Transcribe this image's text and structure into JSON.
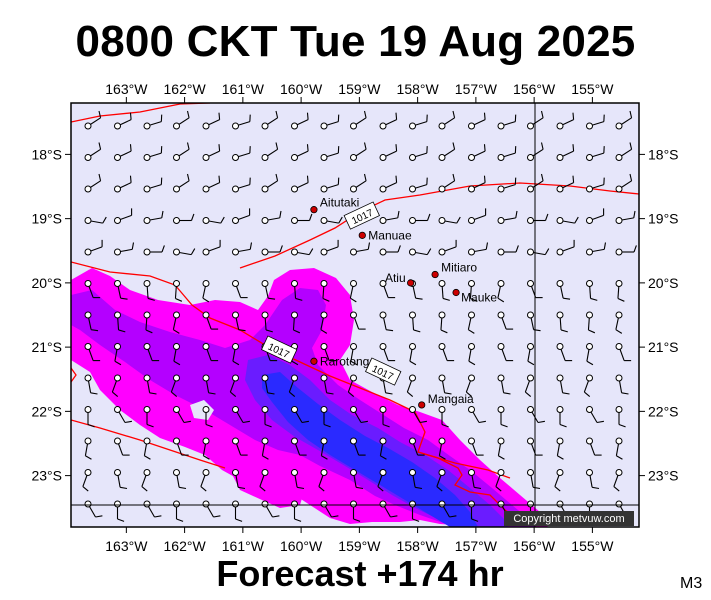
{
  "header": {
    "title": "0800 CKT Tue 19 Aug 2025"
  },
  "footer": {
    "forecast": "Forecast +174 hr",
    "model": "M3"
  },
  "credit": "Copyright metvuw.com",
  "map": {
    "lon_labels": [
      "163°W",
      "162°W",
      "161°W",
      "160°W",
      "159°W",
      "158°W",
      "157°W",
      "156°W",
      "155°W"
    ],
    "lon_values": [
      -163,
      -162,
      -161,
      -160,
      -159,
      -158,
      -157,
      -156,
      -155
    ],
    "lat_labels": [
      "18°S",
      "19°S",
      "20°S",
      "21°S",
      "22°S",
      "23°S"
    ],
    "lat_values": [
      -18,
      -19,
      -20,
      -21,
      -22,
      -23
    ],
    "extent": {
      "lon_min": -163.95,
      "lon_max": -154.2,
      "lat_max": -17.2,
      "lat_min": -23.8
    },
    "colors": {
      "background": "#e6e6fa",
      "rain_light": "#ff00ff",
      "rain_moderate": "#b400ff",
      "rain_heavy": "#6a1cff",
      "rain_very_heavy": "#2a2aff",
      "isobar": "#ff0000",
      "island": "#cc0000",
      "frame": "#000000"
    },
    "isobar_labels": [
      "1017",
      "1017",
      "1017"
    ],
    "places": [
      {
        "name": "Aitutaki",
        "lon": -159.78,
        "lat": -18.86
      },
      {
        "name": "Manuae",
        "lon": -158.95,
        "lat": -19.26
      },
      {
        "name": "Mitiaro",
        "lon": -157.7,
        "lat": -19.87
      },
      {
        "name": "Atiu",
        "lon": -158.12,
        "lat": -20.0
      },
      {
        "name": "Mauke",
        "lon": -157.34,
        "lat": -20.15
      },
      {
        "name": "Rarotonga",
        "lon": -159.78,
        "lat": -21.22
      },
      {
        "name": "Mangaia",
        "lon": -157.93,
        "lat": -21.9
      }
    ]
  }
}
